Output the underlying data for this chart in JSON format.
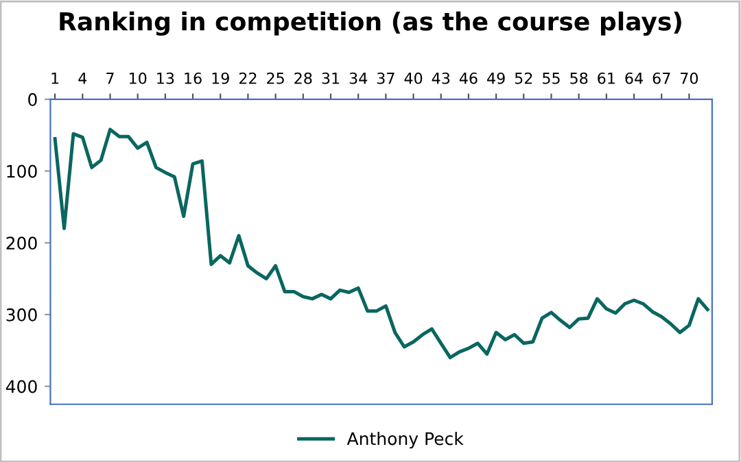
{
  "chart_data": {
    "type": "line",
    "title": "Ranking in competition (as the course plays)",
    "x": [
      1,
      2,
      3,
      4,
      5,
      6,
      7,
      8,
      9,
      10,
      11,
      12,
      13,
      14,
      15,
      16,
      17,
      18,
      19,
      20,
      21,
      22,
      23,
      24,
      25,
      26,
      27,
      28,
      29,
      30,
      31,
      32,
      33,
      34,
      35,
      36,
      37,
      38,
      39,
      40,
      41,
      42,
      43,
      44,
      45,
      46,
      47,
      48,
      49,
      50,
      51,
      52,
      53,
      54,
      55,
      56,
      57,
      58,
      59,
      60,
      61,
      62,
      63,
      64,
      65,
      66,
      67,
      68,
      69,
      70,
      71,
      72
    ],
    "series": [
      {
        "name": "Anthony Peck",
        "color": "#0a6660",
        "values": [
          55,
          180,
          48,
          53,
          95,
          85,
          42,
          52,
          52,
          68,
          60,
          95,
          102,
          108,
          163,
          90,
          86,
          230,
          218,
          228,
          190,
          232,
          242,
          250,
          232,
          268,
          268,
          275,
          278,
          272,
          278,
          266,
          269,
          263,
          295,
          295,
          288,
          325,
          345,
          338,
          328,
          320,
          340,
          360,
          352,
          347,
          340,
          355,
          325,
          335,
          328,
          340,
          338,
          305,
          297,
          308,
          318,
          306,
          305,
          278,
          292,
          298,
          285,
          280,
          285,
          296,
          303,
          313,
          325,
          315,
          278,
          293
        ]
      }
    ],
    "xlim": [
      0.5,
      72.5
    ],
    "xticks": [
      1,
      4,
      7,
      10,
      13,
      16,
      19,
      22,
      25,
      28,
      31,
      34,
      37,
      40,
      43,
      46,
      49,
      52,
      55,
      58,
      61,
      64,
      67,
      70
    ],
    "ylim": [
      425,
      0
    ],
    "yticks": [
      0,
      100,
      200,
      300,
      400
    ],
    "grid": false,
    "legend": "bottom",
    "marker": "none",
    "line_style": "solid"
  }
}
